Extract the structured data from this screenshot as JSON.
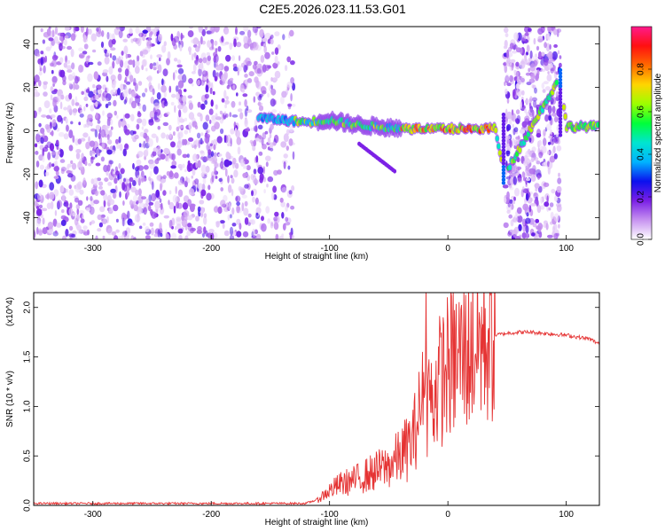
{
  "figure": {
    "title": "C2E5.2026.023.11.53.G01"
  },
  "chart_data": [
    {
      "type": "heatmap",
      "title": "C2E5.2026.023.11.53.G01",
      "xlabel": "Height of straight line (km)",
      "ylabel": "Frequency (Hz)",
      "xlim": [
        -350,
        128
      ],
      "ylim": [
        -50,
        48
      ],
      "x_ticks": [
        -300,
        -200,
        -100,
        0,
        100
      ],
      "y_ticks": [
        -40,
        -20,
        0,
        20,
        40
      ],
      "colorbar": {
        "label": "Normalized spectral amplitude",
        "range": [
          0,
          1
        ],
        "ticks": [
          "0.0",
          "0.2",
          "0.4",
          "0.6",
          "0.8"
        ],
        "colors": [
          "#ffffff",
          "#c792f0",
          "#7a1fe6",
          "#0b10ee",
          "#00b3ff",
          "#00e5d0",
          "#00ff3a",
          "#9cff00",
          "#ffd500",
          "#ff6a00",
          "#ff1010",
          "#ff1a8c"
        ]
      },
      "features": {
        "noise_region_x": [
          -350,
          -130
        ],
        "noise_region2_x": [
          48,
          95
        ],
        "signal_x": [
          -160,
          128
        ],
        "signal_freq": [
          [
            -160,
            6
          ],
          [
            -140,
            5
          ],
          [
            -120,
            4
          ],
          [
            -100,
            5
          ],
          [
            -80,
            3
          ],
          [
            -60,
            2
          ],
          [
            -40,
            1
          ],
          [
            -20,
            1
          ],
          [
            0,
            1
          ],
          [
            20,
            1
          ],
          [
            40,
            1
          ],
          [
            48,
            -20
          ],
          [
            95,
            25
          ],
          [
            100,
            2
          ],
          [
            128,
            2
          ]
        ]
      }
    },
    {
      "type": "line",
      "xlabel": "Height of straight line (km)",
      "ylabel": "SNR (10 * v/v)",
      "multiplier": "(x10^4)",
      "xlim": [
        -350,
        128
      ],
      "ylim": [
        0,
        2.15
      ],
      "x_ticks": [
        -300,
        -200,
        -100,
        0,
        100
      ],
      "y_ticks": [
        "0.0",
        "0.5",
        "1.0",
        "1.5",
        "2.0"
      ],
      "series": [
        {
          "color": "#e53333",
          "x": [
            -350,
            -300,
            -250,
            -200,
            -150,
            -120,
            -110,
            -100,
            -90,
            -80,
            -70,
            -60,
            -50,
            -40,
            -30,
            -25,
            -20,
            -15,
            -10,
            -5,
            0,
            10,
            20,
            30,
            40,
            50,
            60,
            70,
            80,
            90,
            100,
            110,
            120,
            128
          ],
          "y": [
            0.02,
            0.02,
            0.02,
            0.02,
            0.02,
            0.02,
            0.06,
            0.15,
            0.22,
            0.25,
            0.3,
            0.35,
            0.4,
            0.5,
            0.65,
            0.9,
            1.1,
            1.0,
            1.2,
            1.3,
            1.4,
            1.5,
            1.6,
            1.68,
            1.72,
            1.74,
            1.75,
            1.75,
            1.74,
            1.73,
            1.72,
            1.7,
            1.68,
            1.63
          ]
        }
      ]
    }
  ]
}
